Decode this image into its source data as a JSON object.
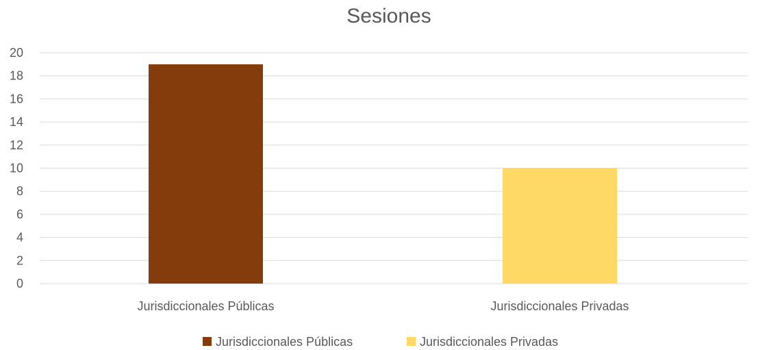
{
  "chart_data": {
    "type": "bar",
    "title": "Sesiones",
    "categories": [
      "Jurisdiccionales Públicas",
      "Jurisdiccionales Privadas"
    ],
    "values": [
      19,
      10
    ],
    "colors": [
      "#843c0c",
      "#ffd966"
    ],
    "ylim": [
      0,
      20
    ],
    "yticks": [
      0,
      2,
      4,
      6,
      8,
      10,
      12,
      14,
      16,
      18,
      20
    ],
    "grid": true,
    "legend": {
      "position": "bottom",
      "entries": [
        "Jurisdiccionales Públicas",
        "Jurisdiccionales Privadas"
      ]
    }
  }
}
